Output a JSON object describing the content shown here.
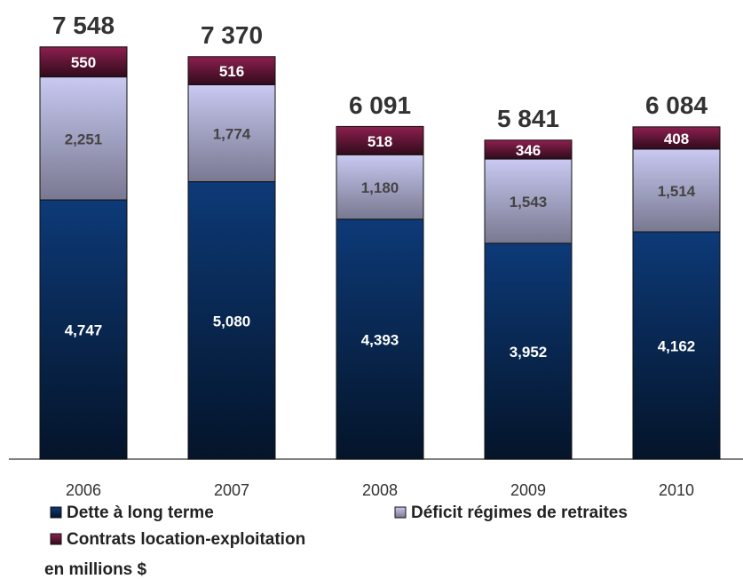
{
  "chart_data": {
    "type": "stacked_bar",
    "categories": [
      "2006",
      "2007",
      "2008",
      "2009",
      "2010"
    ],
    "series": [
      {
        "name": "Dette à long terme",
        "color": "#0d3a78",
        "values": [
          4747,
          5080,
          4393,
          3952,
          4162
        ],
        "value_labels": [
          "4,747",
          "5,080",
          "4,393",
          "3,952",
          "4,162"
        ]
      },
      {
        "name": "Déficit régimes de retraites",
        "color": "#c9c9f2",
        "values": [
          2251,
          1774,
          1180,
          1543,
          1514
        ],
        "value_labels": [
          "2,251",
          "1,774",
          "1,180",
          "1,543",
          "1,514"
        ]
      },
      {
        "name": "Contrats location-exploitation",
        "color": "#8e1f50",
        "values": [
          550,
          516,
          518,
          346,
          408
        ]
      }
    ],
    "totals": {
      "values": [
        7548,
        7370,
        6091,
        5841,
        6084
      ],
      "value_labels": [
        "7 548",
        "7 370",
        "6 091",
        "5 841",
        "6 084"
      ]
    },
    "ylim": [
      0,
      8000
    ],
    "note": "en millions $"
  }
}
